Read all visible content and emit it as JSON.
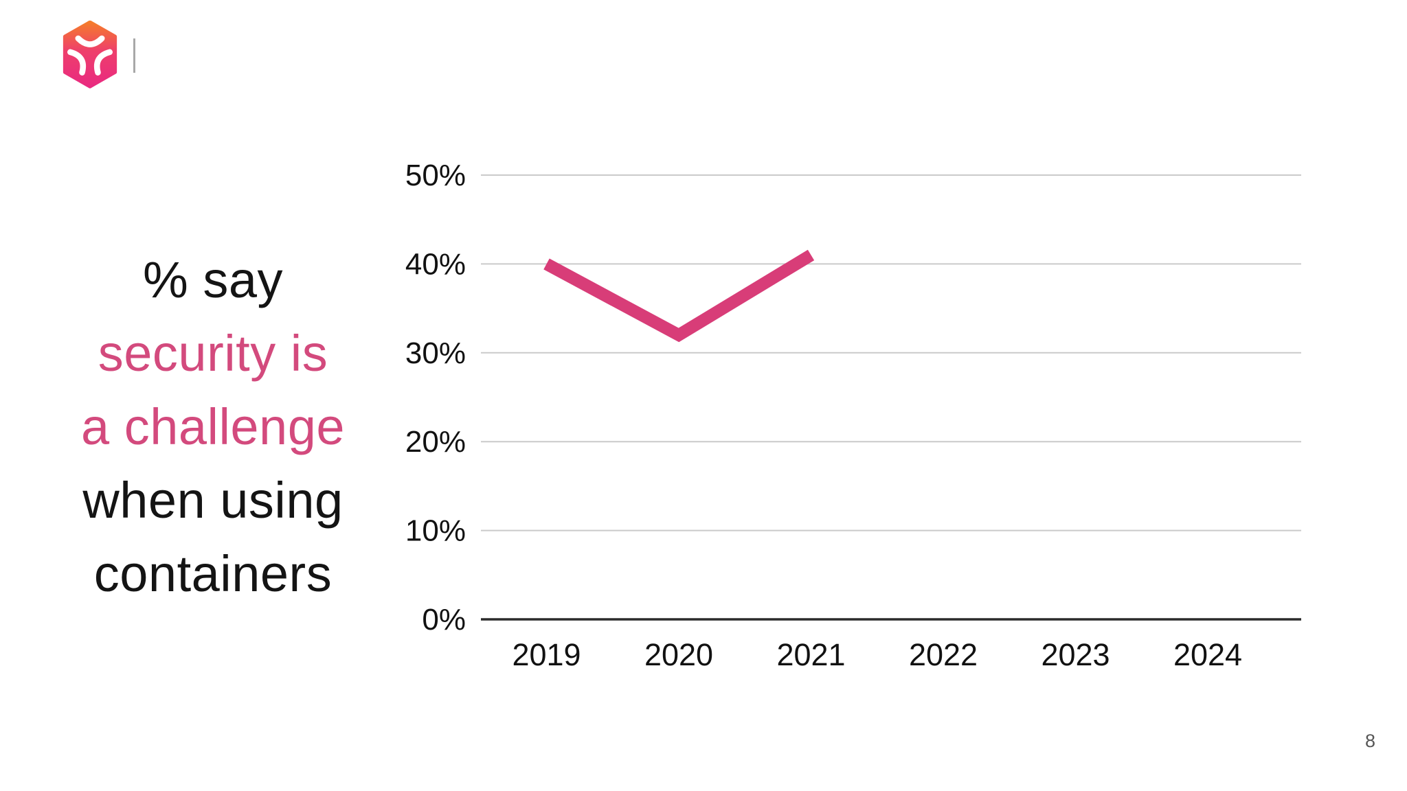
{
  "slide": {
    "page_number": "8"
  },
  "logo": {
    "icon": "cube-logo-icon",
    "divider": "vertical-divider"
  },
  "headline": {
    "lines": [
      {
        "text": "% say",
        "emphasis": false
      },
      {
        "text": "security is",
        "emphasis": true
      },
      {
        "text": "a challenge",
        "emphasis": true
      },
      {
        "text": "when using",
        "emphasis": false
      },
      {
        "text": "containers",
        "emphasis": false
      }
    ]
  },
  "colors": {
    "headline_accent_pink": "#d34a7d",
    "headline_black": "#141414",
    "line_pink": "#d83d78",
    "gridline_gray": "#cacaca",
    "axis_black": "#2b2b2b",
    "page_number_gray": "#565656",
    "logo_gradient_top": "#f57b2b",
    "logo_gradient_mid": "#ee3f6c",
    "logo_gradient_bottom": "#e92a80"
  },
  "chart_data": {
    "type": "line",
    "title": "",
    "xlabel": "",
    "ylabel": "",
    "categories": [
      "2019",
      "2020",
      "2021",
      "2022",
      "2023",
      "2024"
    ],
    "series": [
      {
        "name": "% say security is a challenge when using containers",
        "values": [
          40,
          32,
          41,
          null,
          null,
          null
        ],
        "color": "#d83d78"
      }
    ],
    "ylim": [
      0,
      50
    ],
    "yticks": [
      {
        "value": 0,
        "label": "0%"
      },
      {
        "value": 10,
        "label": "10%"
      },
      {
        "value": 20,
        "label": "20%"
      },
      {
        "value": 30,
        "label": "30%"
      },
      {
        "value": 40,
        "label": "40%"
      },
      {
        "value": 50,
        "label": "50%"
      }
    ],
    "grid": true,
    "legend": "none"
  }
}
